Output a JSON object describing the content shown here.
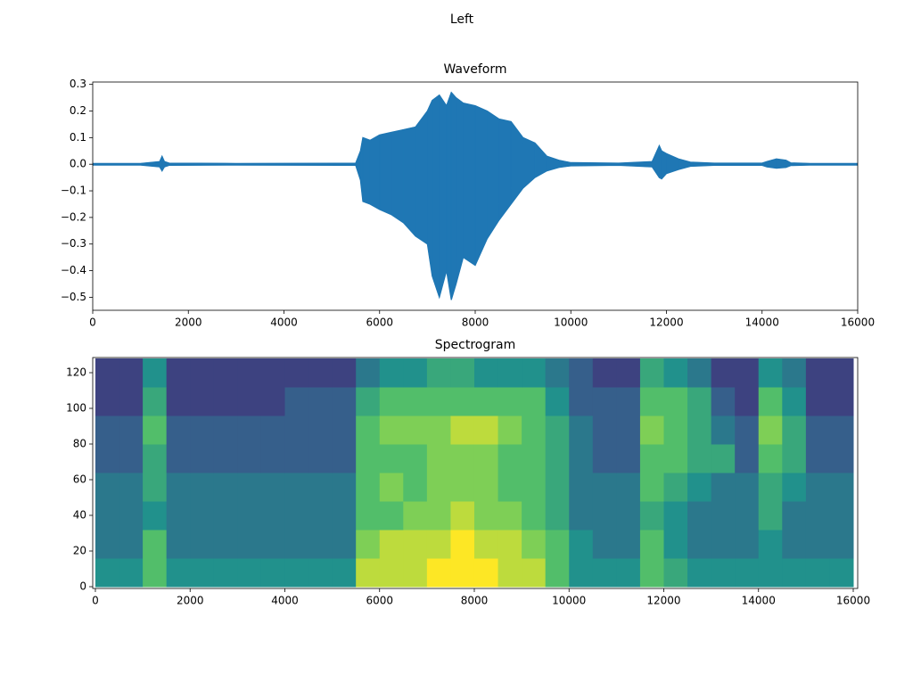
{
  "suptitle": "Left",
  "chart_data": [
    {
      "type": "envelope",
      "title": "Waveform",
      "x": [
        0,
        1000,
        1400,
        1450,
        1500,
        1600,
        3000,
        5500,
        5600,
        5650,
        5800,
        6000,
        6250,
        6500,
        6750,
        7000,
        7100,
        7250,
        7400,
        7500,
        7600,
        7750,
        8000,
        8250,
        8500,
        8750,
        9000,
        9250,
        9500,
        9750,
        10000,
        11000,
        11700,
        11850,
        11900,
        12000,
        12250,
        12500,
        13000,
        14000,
        14100,
        14300,
        14500,
        14600,
        15000,
        16000
      ],
      "series": [
        {
          "color": "#1f77b4",
          "values": [
            0.003,
            0.003,
            0.01,
            0.03,
            0.01,
            0.004,
            0.003,
            0.004,
            0.05,
            0.1,
            0.09,
            0.11,
            0.12,
            0.13,
            0.14,
            0.2,
            0.24,
            0.26,
            0.22,
            0.27,
            0.25,
            0.23,
            0.22,
            0.2,
            0.17,
            0.16,
            0.1,
            0.08,
            0.03,
            0.015,
            0.006,
            0.004,
            0.01,
            0.07,
            0.05,
            0.04,
            0.02,
            0.008,
            0.004,
            0.004,
            0.01,
            0.02,
            0.015,
            0.005,
            0.003,
            0.003
          ]
        },
        {
          "color": "#1f77b4",
          "values": [
            -0.003,
            -0.003,
            -0.01,
            -0.025,
            -0.01,
            -0.004,
            -0.003,
            -0.004,
            -0.06,
            -0.14,
            -0.15,
            -0.17,
            -0.19,
            -0.22,
            -0.27,
            -0.3,
            -0.42,
            -0.5,
            -0.4,
            -0.51,
            -0.45,
            -0.35,
            -0.38,
            -0.28,
            -0.21,
            -0.15,
            -0.09,
            -0.05,
            -0.025,
            -0.012,
            -0.006,
            -0.004,
            -0.01,
            -0.05,
            -0.055,
            -0.035,
            -0.02,
            -0.008,
            -0.004,
            -0.004,
            -0.01,
            -0.015,
            -0.012,
            -0.005,
            -0.003,
            -0.003
          ]
        }
      ],
      "xlim": [
        0,
        16000
      ],
      "xticks": [
        0,
        2000,
        4000,
        6000,
        8000,
        10000,
        12000,
        14000,
        16000
      ],
      "ylim": [
        -0.549,
        0.309
      ],
      "yticks": [
        {
          "value": -0.5,
          "label": "−0.5"
        },
        {
          "value": -0.4,
          "label": "−0.4"
        },
        {
          "value": -0.3,
          "label": "−0.3"
        },
        {
          "value": -0.2,
          "label": "−0.2"
        },
        {
          "value": -0.1,
          "label": "−0.1"
        },
        {
          "value": 0,
          "label": "0.0"
        },
        0.1,
        0.2,
        0.3
      ]
    },
    {
      "type": "heatmap",
      "title": "Spectrogram",
      "colormap": "viridis",
      "zlim": [
        0,
        10
      ],
      "x": [
        0,
        500,
        1000,
        1500,
        2000,
        2500,
        3000,
        3500,
        4000,
        4500,
        5000,
        5500,
        6000,
        6500,
        7000,
        7500,
        8000,
        8500,
        9000,
        9500,
        10000,
        10500,
        11000,
        11500,
        12000,
        12500,
        13000,
        13500,
        14000,
        14500,
        15000,
        15500,
        16000
      ],
      "y": [
        0,
        16,
        32,
        48,
        64,
        80,
        96,
        112,
        128
      ],
      "z": [
        [
          5,
          5,
          7,
          5,
          5,
          5,
          5,
          5,
          5,
          5,
          5,
          9,
          9,
          9,
          10,
          10,
          10,
          9,
          9,
          7,
          5,
          5,
          5,
          7,
          6,
          5,
          5,
          5,
          5,
          5,
          5,
          5
        ],
        [
          4,
          4,
          7,
          4,
          4,
          4,
          4,
          4,
          4,
          4,
          4,
          8,
          9,
          9,
          9,
          10,
          9,
          9,
          8,
          7,
          5,
          4,
          4,
          7,
          5,
          4,
          4,
          4,
          5,
          4,
          4,
          4
        ],
        [
          4,
          4,
          5,
          4,
          4,
          4,
          4,
          4,
          4,
          4,
          4,
          7,
          7,
          8,
          8,
          9,
          8,
          8,
          7,
          6,
          4,
          4,
          4,
          6,
          5,
          4,
          4,
          4,
          6,
          4,
          4,
          4
        ],
        [
          4,
          4,
          6,
          4,
          4,
          4,
          4,
          4,
          4,
          4,
          4,
          7,
          8,
          7,
          8,
          8,
          8,
          7,
          7,
          6,
          4,
          4,
          4,
          7,
          6,
          5,
          4,
          4,
          6,
          5,
          4,
          4
        ],
        [
          3,
          3,
          6,
          3,
          3,
          3,
          3,
          3,
          3,
          3,
          3,
          7,
          7,
          7,
          8,
          8,
          8,
          7,
          7,
          6,
          4,
          3,
          3,
          7,
          7,
          6,
          6,
          3,
          7,
          6,
          3,
          3
        ],
        [
          3,
          3,
          7,
          3,
          3,
          3,
          3,
          3,
          3,
          3,
          3,
          7,
          8,
          8,
          8,
          9,
          9,
          8,
          7,
          6,
          4,
          3,
          3,
          8,
          7,
          6,
          4,
          3,
          8,
          6,
          3,
          3
        ],
        [
          2,
          2,
          6,
          2,
          2,
          2,
          2,
          2,
          3,
          3,
          3,
          6,
          7,
          7,
          7,
          7,
          7,
          7,
          7,
          5,
          3,
          3,
          3,
          7,
          7,
          6,
          3,
          2,
          7,
          5,
          2,
          2
        ],
        [
          2,
          2,
          5,
          2,
          2,
          2,
          2,
          2,
          2,
          2,
          2,
          4,
          5,
          5,
          6,
          6,
          5,
          5,
          5,
          4,
          3,
          2,
          2,
          6,
          5,
          4,
          2,
          2,
          5,
          4,
          2,
          2
        ]
      ],
      "xlim": [
        -56,
        16094
      ],
      "xticks": [
        0,
        2000,
        4000,
        6000,
        8000,
        10000,
        12000,
        14000,
        16000
      ],
      "ylim": [
        -1,
        128.5
      ],
      "yticks": [
        0,
        20,
        40,
        60,
        80,
        100,
        120
      ]
    }
  ]
}
